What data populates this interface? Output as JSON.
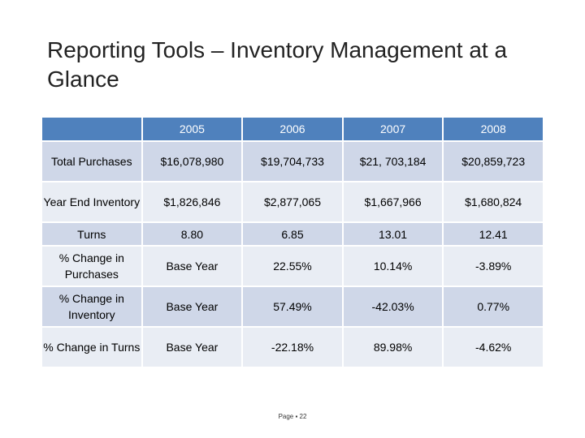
{
  "title": "Reporting Tools – Inventory Management at a Glance",
  "table": {
    "header": [
      "",
      "2005",
      "2006",
      "2007",
      "2008"
    ],
    "rows": [
      {
        "label": "Total Purchases",
        "cells": [
          "$16,078,980",
          "$19,704,733",
          "$21, 703,184",
          "$20,859,723"
        ]
      },
      {
        "label": "Year End Inventory",
        "cells": [
          "$1,826,846",
          "$2,877,065",
          "$1,667,966",
          "$1,680,824"
        ]
      },
      {
        "label": "Turns",
        "cells": [
          "8.80",
          "6.85",
          "13.01",
          "12.41"
        ]
      },
      {
        "label": "% Change in Purchases",
        "cells": [
          "Base Year",
          "22.55%",
          "10.14%",
          "-3.89%"
        ]
      },
      {
        "label": "% Change in Inventory",
        "cells": [
          "Base Year",
          "57.49%",
          "-42.03%",
          "0.77%"
        ]
      },
      {
        "label": "% Change in Turns",
        "cells": [
          "Base Year",
          "-22.18%",
          "89.98%",
          "-4.62%"
        ]
      }
    ]
  },
  "footer": "Page ▪ 22",
  "colors": {
    "header_bg": "#4f81bd",
    "row_dark": "#cfd7e8",
    "row_light": "#e9edf4"
  }
}
